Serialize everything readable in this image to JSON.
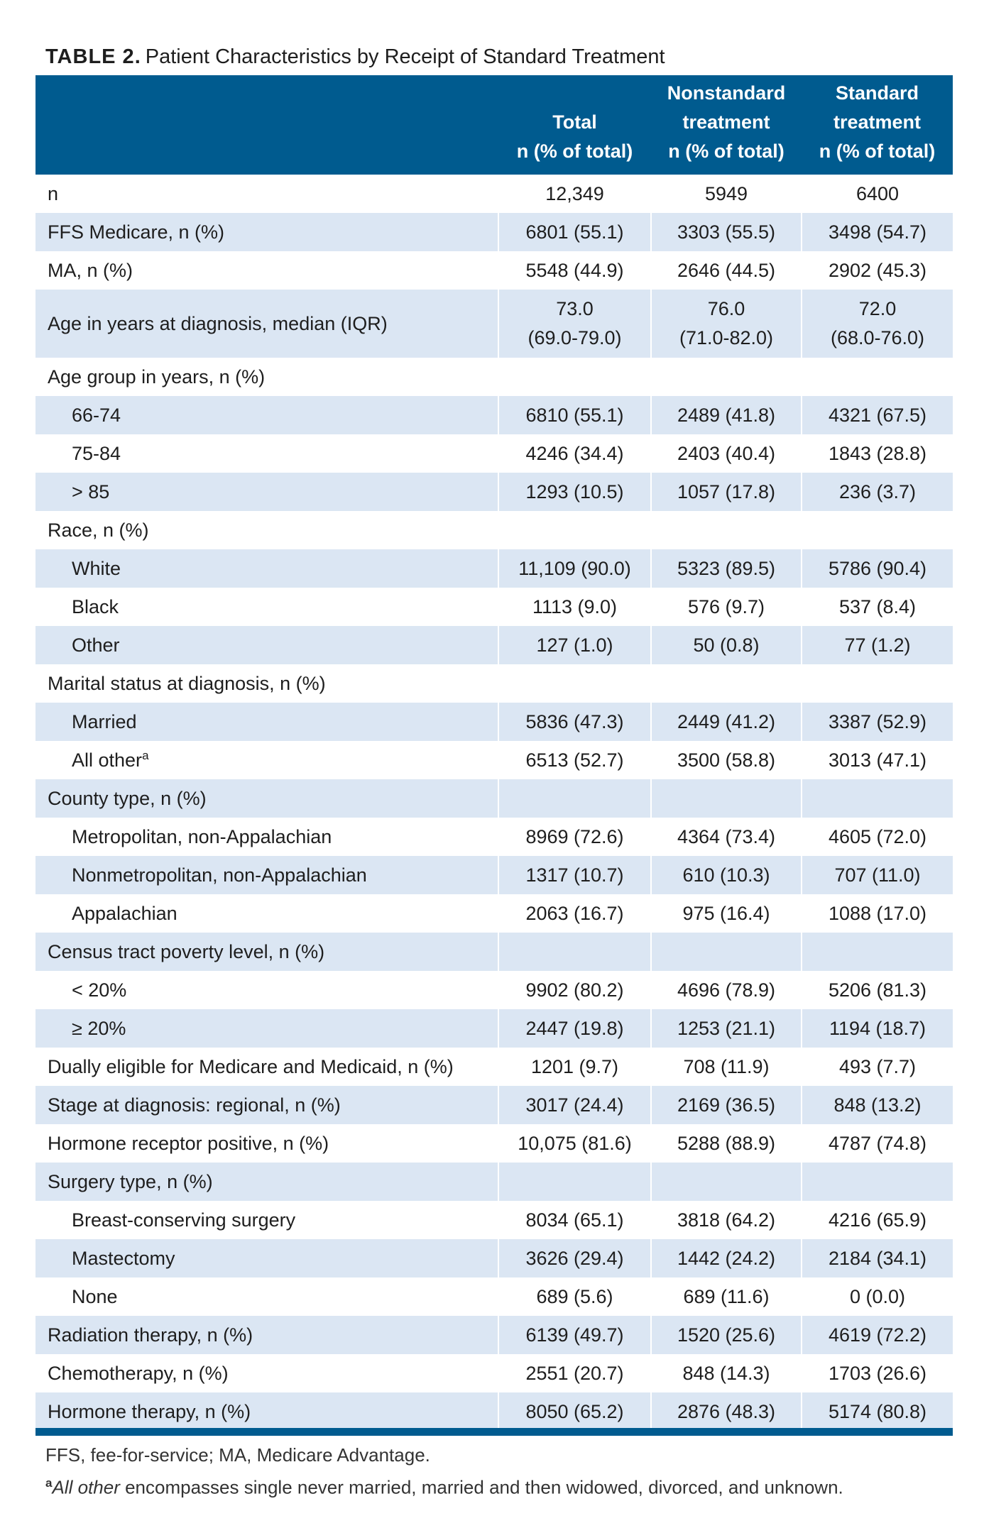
{
  "caption": {
    "tag": "TABLE 2.",
    "title": "Patient Characteristics by Receipt of Standard Treatment"
  },
  "table": {
    "headers": [
      {
        "lines": [
          ""
        ]
      },
      {
        "lines": [
          "Total",
          "n (% of total)"
        ]
      },
      {
        "lines": [
          "Nonstandard",
          "treatment",
          "n (% of total)"
        ]
      },
      {
        "lines": [
          "Standard",
          "treatment",
          "n (% of total)"
        ]
      }
    ],
    "rows": [
      {
        "label": "n",
        "indent": false,
        "shade": false,
        "values": [
          "12,349",
          "5949",
          "6400"
        ]
      },
      {
        "label": "FFS Medicare, n (%)",
        "indent": false,
        "shade": true,
        "values": [
          "6801 (55.1)",
          "3303 (55.5)",
          "3498 (54.7)"
        ]
      },
      {
        "label": "MA, n (%)",
        "indent": false,
        "shade": false,
        "values": [
          "5548 (44.9)",
          "2646 (44.5)",
          "2902 (45.3)"
        ]
      },
      {
        "label": "Age in years at diagnosis, median (IQR)",
        "indent": false,
        "shade": true,
        "values": [
          [
            "73.0",
            "(69.0-79.0)"
          ],
          [
            "76.0",
            "(71.0-82.0)"
          ],
          [
            "72.0",
            "(68.0-76.0)"
          ]
        ]
      },
      {
        "label": "Age group in years, n (%)",
        "indent": false,
        "shade": false,
        "values": [
          "",
          "",
          ""
        ]
      },
      {
        "label": "66-74",
        "indent": true,
        "shade": true,
        "values": [
          "6810 (55.1)",
          "2489 (41.8)",
          "4321 (67.5)"
        ]
      },
      {
        "label": "75-84",
        "indent": true,
        "shade": false,
        "values": [
          "4246 (34.4)",
          "2403 (40.4)",
          "1843 (28.8)"
        ]
      },
      {
        "label": "> 85",
        "indent": true,
        "shade": true,
        "values": [
          "1293 (10.5)",
          "1057 (17.8)",
          "236 (3.7)"
        ]
      },
      {
        "label": "Race, n (%)",
        "indent": false,
        "shade": false,
        "values": [
          "",
          "",
          ""
        ]
      },
      {
        "label": "White",
        "indent": true,
        "shade": true,
        "values": [
          "11,109 (90.0)",
          "5323 (89.5)",
          "5786 (90.4)"
        ]
      },
      {
        "label": "Black",
        "indent": true,
        "shade": false,
        "values": [
          "1113 (9.0)",
          "576 (9.7)",
          "537 (8.4)"
        ]
      },
      {
        "label": "Other",
        "indent": true,
        "shade": true,
        "values": [
          "127 (1.0)",
          "50 (0.8)",
          "77 (1.2)"
        ]
      },
      {
        "label": "Marital status at diagnosis, n (%)",
        "indent": false,
        "shade": false,
        "values": [
          "",
          "",
          ""
        ]
      },
      {
        "label": "Married",
        "indent": true,
        "shade": true,
        "values": [
          "5836 (47.3)",
          "2449 (41.2)",
          "3387 (52.9)"
        ]
      },
      {
        "label": "All other",
        "sup": "a",
        "indent": true,
        "shade": false,
        "values": [
          "6513 (52.7)",
          "3500 (58.8)",
          "3013 (47.1)"
        ]
      },
      {
        "label": "County type, n (%)",
        "indent": false,
        "shade": true,
        "values": [
          "",
          "",
          ""
        ]
      },
      {
        "label": "Metropolitan, non-Appalachian",
        "indent": true,
        "shade": false,
        "values": [
          "8969 (72.6)",
          "4364 (73.4)",
          "4605 (72.0)"
        ]
      },
      {
        "label": "Nonmetropolitan, non-Appalachian",
        "indent": true,
        "shade": true,
        "values": [
          "1317 (10.7)",
          "610 (10.3)",
          "707 (11.0)"
        ]
      },
      {
        "label": "Appalachian",
        "indent": true,
        "shade": false,
        "values": [
          "2063 (16.7)",
          "975 (16.4)",
          "1088 (17.0)"
        ]
      },
      {
        "label": "Census tract poverty level, n (%)",
        "indent": false,
        "shade": true,
        "values": [
          "",
          "",
          ""
        ]
      },
      {
        "label": "< 20%",
        "indent": true,
        "shade": false,
        "values": [
          "9902 (80.2)",
          "4696 (78.9)",
          "5206 (81.3)"
        ]
      },
      {
        "label": "≥ 20%",
        "indent": true,
        "shade": true,
        "values": [
          "2447 (19.8)",
          "1253 (21.1)",
          "1194 (18.7)"
        ]
      },
      {
        "label": "Dually eligible for Medicare and Medicaid, n (%)",
        "indent": false,
        "shade": false,
        "values": [
          "1201 (9.7)",
          "708 (11.9)",
          "493 (7.7)"
        ]
      },
      {
        "label": "Stage at diagnosis: regional, n (%)",
        "indent": false,
        "shade": true,
        "values": [
          "3017 (24.4)",
          "2169 (36.5)",
          "848 (13.2)"
        ]
      },
      {
        "label": "Hormone receptor positive, n (%)",
        "indent": false,
        "shade": false,
        "values": [
          "10,075 (81.6)",
          "5288 (88.9)",
          "4787 (74.8)"
        ]
      },
      {
        "label": "Surgery type, n (%)",
        "indent": false,
        "shade": true,
        "values": [
          "",
          "",
          ""
        ]
      },
      {
        "label": "Breast-conserving surgery",
        "indent": true,
        "shade": false,
        "values": [
          "8034 (65.1)",
          "3818 (64.2)",
          "4216 (65.9)"
        ]
      },
      {
        "label": "Mastectomy",
        "indent": true,
        "shade": true,
        "values": [
          "3626 (29.4)",
          "1442 (24.2)",
          "2184 (34.1)"
        ]
      },
      {
        "label": "None",
        "indent": true,
        "shade": false,
        "values": [
          "689 (5.6)",
          "689 (11.6)",
          "0 (0.0)"
        ]
      },
      {
        "label": "Radiation therapy, n (%)",
        "indent": false,
        "shade": true,
        "values": [
          "6139 (49.7)",
          "1520 (25.6)",
          "4619 (72.2)"
        ]
      },
      {
        "label": "Chemotherapy, n (%)",
        "indent": false,
        "shade": false,
        "values": [
          "2551 (20.7)",
          "848 (14.3)",
          "1703 (26.6)"
        ]
      },
      {
        "label": "Hormone therapy, n (%)",
        "indent": false,
        "shade": true,
        "values": [
          "8050 (65.2)",
          "2876 (48.3)",
          "5174 (80.8)"
        ]
      }
    ]
  },
  "footnotes": {
    "abbreviations": "FFS, fee-for-service; MA, Medicare Advantage.",
    "a_marker": "a",
    "a_italic": "All other",
    "a_text": " encompasses single never married, married and then widowed, divorced, and unknown."
  },
  "colors": {
    "header_bg": "#005b8f",
    "row_shade": "#dbe6f3"
  }
}
